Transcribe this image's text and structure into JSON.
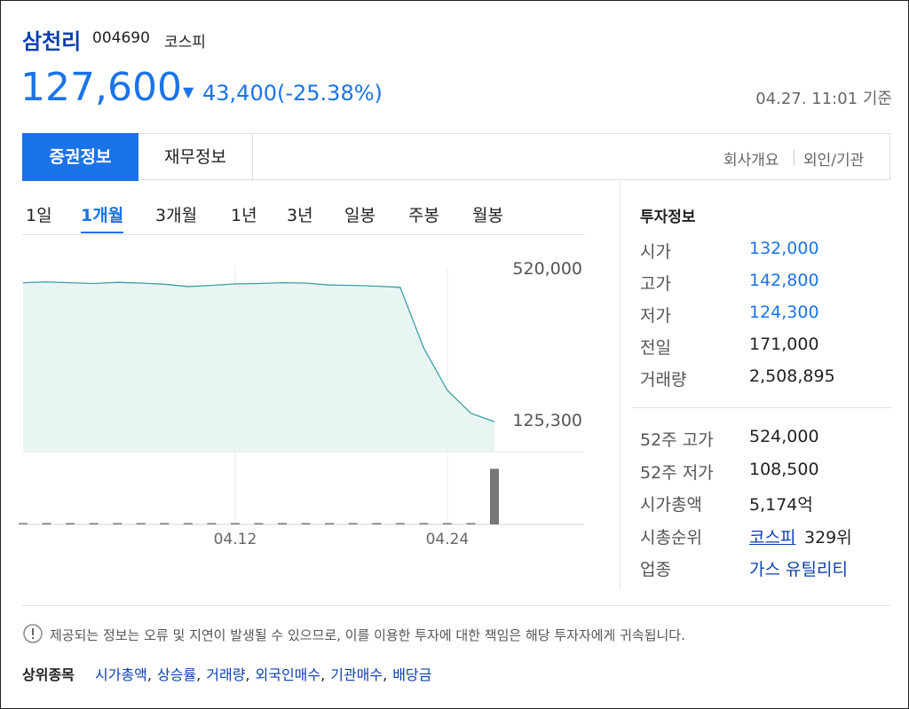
{
  "header": {
    "name": "삼천리",
    "code": "004690",
    "market": "코스피",
    "price": "127,600",
    "change_arrow": "▼",
    "change": "43,400(-25.38%)",
    "timestamp": "04.27. 11:01 기준"
  },
  "tabs": [
    "증권정보",
    "재무정보"
  ],
  "links": [
    "회사개요",
    "외인/기관"
  ],
  "period_tabs": [
    "1일",
    "1개월",
    "3개월",
    "1년",
    "3년",
    "일봉",
    "주봉",
    "월봉"
  ],
  "active_period": 1,
  "chart_data": {
    "type": "area",
    "categories": [
      null,
      null,
      null,
      null,
      null,
      null,
      null,
      null,
      null,
      "04.12",
      null,
      null,
      null,
      null,
      null,
      null,
      null,
      null,
      "04.24",
      null,
      null
    ],
    "values": [
      490000,
      492000,
      490000,
      488000,
      491000,
      489000,
      486000,
      480000,
      483000,
      487000,
      488000,
      490000,
      489000,
      484000,
      483000,
      481000,
      478000,
      320000,
      210000,
      150000,
      128000
    ],
    "volume": [
      15000,
      14000,
      16000,
      12000,
      15000,
      13000,
      14000,
      18000,
      16000,
      15000,
      14000,
      17000,
      15000,
      16000,
      60000,
      20000,
      18000,
      35000,
      40000,
      25000,
      2508895
    ],
    "color": "#3a9fa4",
    "fill": "#e9f5f3",
    "volume_color": "#777777",
    "ylim": [
      50000,
      600000
    ],
    "yticks": [
      {
        "value": 520000,
        "label": "520,000"
      },
      {
        "value": 125300,
        "label": "125,300"
      }
    ],
    "volume_lim": [
      0,
      2800000
    ]
  },
  "invest_info": {
    "title": "투자정보",
    "rows": [
      {
        "label": "시가",
        "value": "132,000",
        "color": "#1a73e8"
      },
      {
        "label": "고가",
        "value": "142,800",
        "color": "#1a73e8"
      },
      {
        "label": "저가",
        "value": "124,300",
        "color": "#1a73e8"
      },
      {
        "label": "전일",
        "value": "171,000",
        "color": "#222222"
      },
      {
        "label": "거래량",
        "value": "2,508,895",
        "color": "#222222"
      },
      {
        "label": "52주 고가",
        "value": "524,000",
        "color": "#222222"
      },
      {
        "label": "52주 저가",
        "value": "108,500",
        "color": "#222222"
      },
      {
        "label": "시가총액",
        "value": "5,174억",
        "color": "#222222"
      },
      {
        "label": "시총순위",
        "value": "코스피",
        "extra": "329위",
        "color": "#0b3fae"
      },
      {
        "label": "업종",
        "value": "가스 유틸리티",
        "color": "#0b3fae"
      }
    ]
  },
  "notice": "제공되는 정보는 오류 및 지연이 발생될 수 있으므로, 이를 이용한 투자에 대한 책임은 해당 투자자에게 귀속됩니다.",
  "top_items": {
    "label": "상위종목",
    "items": [
      "시가총액",
      "상승률",
      "거래량",
      "외국인매수",
      "기관매수",
      "배당금"
    ],
    "separator": ","
  }
}
